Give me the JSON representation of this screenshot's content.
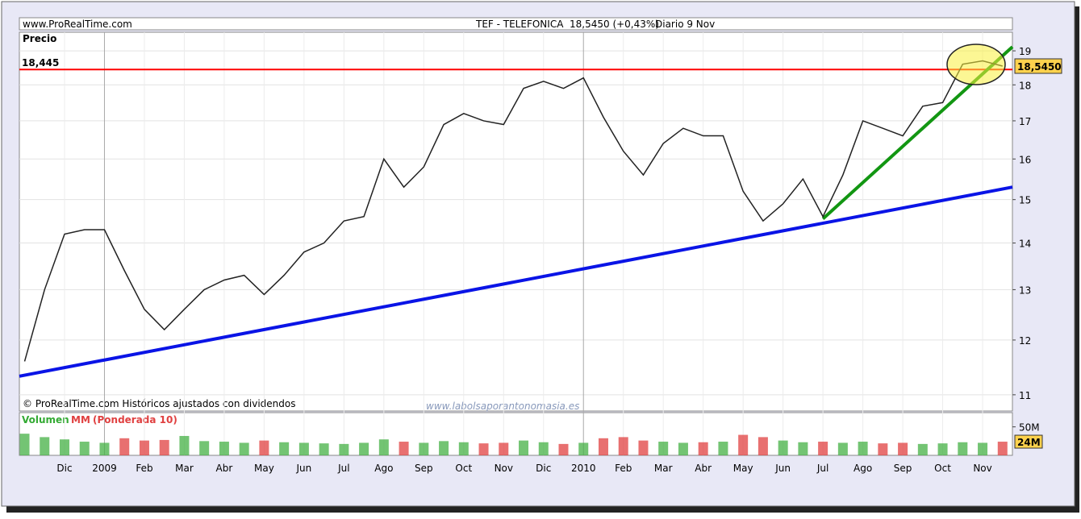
{
  "header": {
    "site": "www.ProRealTime.com",
    "instrument": "TEF - TELEFONICA",
    "quote": "18,5450 (+0,43%)",
    "period": "Diario  9 Nov"
  },
  "chart_data": [
    {
      "type": "line",
      "y_label": "Precio",
      "log_scale": true,
      "color": "#222222",
      "footnote": "© ProRealTime.com Históricos ajustados con dividendos",
      "watermark": "www.labolsaporantonomasia.es",
      "categories": [
        null,
        null,
        "Dic",
        null,
        "2009",
        null,
        "Feb",
        null,
        "Mar",
        null,
        "Abr",
        null,
        "May",
        null,
        "Jun",
        null,
        "Jul",
        null,
        "Ago",
        null,
        "Sep",
        null,
        "Oct",
        null,
        "Nov",
        null,
        "Dic",
        null,
        "2010",
        null,
        "Feb",
        null,
        "Mar",
        null,
        "Abr",
        null,
        "May",
        null,
        "Jun",
        null,
        "Jul",
        null,
        "Ago",
        null,
        "Sep",
        null,
        "Oct",
        null,
        "Nov",
        null
      ],
      "values": [
        11.6,
        13.0,
        14.2,
        14.3,
        14.3,
        13.4,
        12.6,
        12.2,
        12.6,
        13.0,
        13.2,
        13.3,
        12.9,
        13.3,
        13.8,
        14.0,
        14.5,
        14.6,
        16.0,
        15.3,
        15.8,
        16.9,
        17.2,
        17.0,
        16.9,
        17.9,
        18.1,
        17.9,
        18.2,
        17.1,
        16.2,
        15.6,
        16.4,
        16.8,
        16.6,
        16.6,
        15.2,
        14.5,
        14.9,
        15.5,
        14.6,
        15.6,
        17.0,
        16.8,
        16.6,
        17.4,
        17.5,
        18.6,
        18.7,
        18.545
      ],
      "ylim": [
        10.72,
        19.57
      ],
      "yticks": [
        11,
        12,
        13,
        14,
        15,
        16,
        17,
        18,
        19
      ],
      "reference_line": {
        "value": 18.445,
        "label": "18,445",
        "color": "#ff0000"
      },
      "last_value": {
        "value": 18.545,
        "label": "18,5450"
      },
      "trendlines": [
        {
          "color": "#0a14e6",
          "values": [
            11.33,
            15.3
          ]
        },
        {
          "color": "#129612",
          "values": [
            14.55,
            19.12
          ]
        }
      ]
    },
    {
      "type": "bar",
      "title": "Volumen",
      "indicator": "MM",
      "indicator_label": "(Ponderada 10)",
      "up_color": "#44b044",
      "down_color": "#e04040",
      "values": [
        38,
        32,
        28,
        24,
        22,
        30,
        26,
        27,
        34,
        25,
        24,
        22,
        26,
        23,
        22,
        21,
        20,
        22,
        28,
        24,
        22,
        25,
        23,
        21,
        22,
        26,
        23,
        20,
        22,
        30,
        32,
        26,
        24,
        22,
        23,
        24,
        36,
        32,
        26,
        23,
        24,
        22,
        24,
        21,
        22,
        20,
        21,
        23,
        22,
        24
      ],
      "ylim": [
        0,
        75
      ],
      "yticks": [
        {
          "value": 50,
          "label": "50M"
        }
      ],
      "last_value": {
        "value": 24,
        "label": "24M"
      }
    }
  ]
}
